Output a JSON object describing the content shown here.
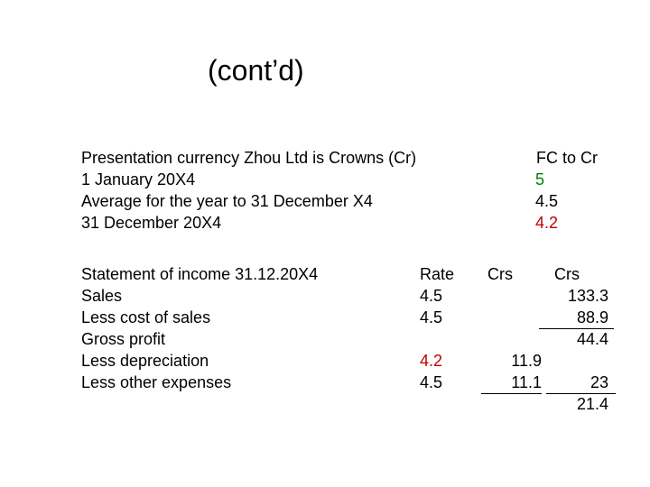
{
  "title": "(cont’d)",
  "info": {
    "lines": [
      "Presentation currency Zhou Ltd is Crowns (Cr)",
      "1 January 20X4",
      "Average for the year to 31 December X4",
      "31 December 20X4"
    ],
    "fc_header": "FC to Cr",
    "fc_values": [
      {
        "value": 5,
        "color": "#008000"
      },
      {
        "value": 4.5,
        "color": "#000000"
      },
      {
        "value": 4.2,
        "color": "#c00000"
      }
    ]
  },
  "statement": {
    "header": {
      "label": "Statement of income 31.12.20X4",
      "rate": "Rate",
      "crs1": "Crs",
      "crs2": "Crs"
    },
    "rows": [
      {
        "label": "Sales",
        "rate": {
          "value": 4.5,
          "color": "#000000"
        },
        "crs2": 133.3
      },
      {
        "label": "Less cost of sales",
        "rate": {
          "value": 4.5,
          "color": "#000000"
        },
        "crs2": 88.9
      },
      {
        "label": "Gross profit",
        "crs2": 44.4
      },
      {
        "label": "Less depreciation",
        "rate": {
          "value": 4.2,
          "color": "#c00000"
        },
        "crs1": 11.9
      },
      {
        "label": "Less other expenses",
        "rate": {
          "value": 4.5,
          "color": "#000000"
        },
        "crs1": 11.1,
        "crs2": 23
      },
      {
        "crs2": 21.4
      }
    ]
  }
}
